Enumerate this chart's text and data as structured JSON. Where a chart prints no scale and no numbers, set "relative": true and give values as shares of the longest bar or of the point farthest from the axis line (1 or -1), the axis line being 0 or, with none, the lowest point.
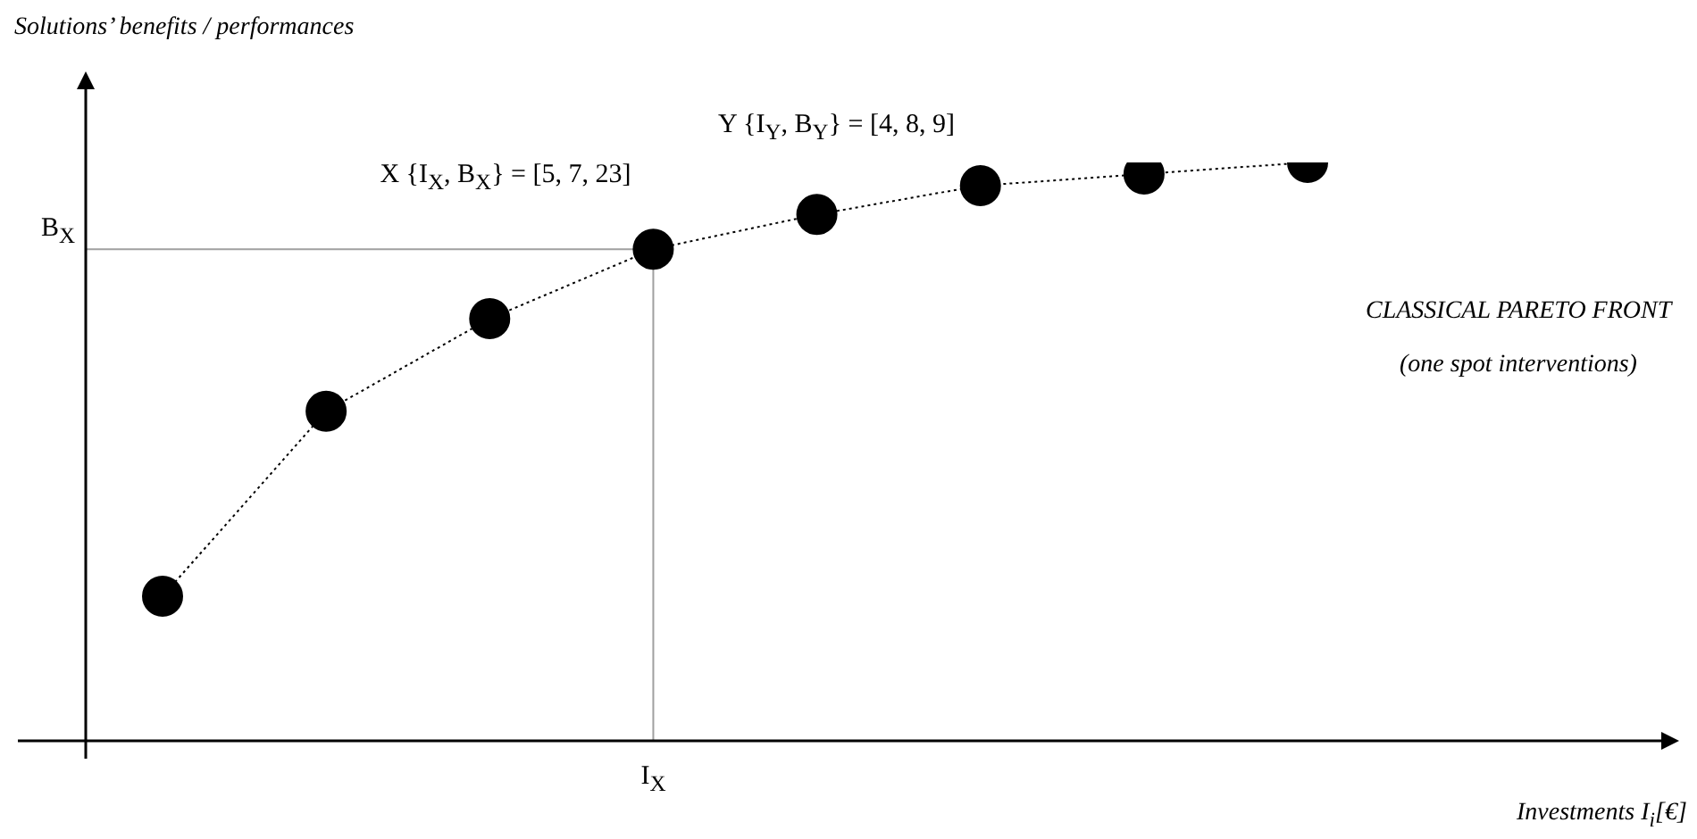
{
  "chart_data": {
    "type": "line",
    "relative": true,
    "ylabel": "Solutions’ benefits / performances",
    "categories": [
      null,
      null,
      null,
      null,
      null,
      null,
      null,
      null
    ],
    "series": [
      {
        "color": "#000000",
        "values": [
          0.25,
          0.57,
          0.73,
          0.85,
          0.91,
          0.96,
          0.98,
          1
        ]
      }
    ],
    "marker": "circle",
    "line_style": "dotted",
    "annotations": [
      "X {I$_{X}$, B$_{X}$} = [5, 7,  23]",
      "B$_{X}$",
      "I$_{X}$",
      "Y {I$_{Y}$, B$_{Y}$} = [4, 8, 9]",
      "CLASSICAL PARETO FRONT",
      "(one spot interventions)",
      "Investments I$_{i}$[€]"
    ]
  }
}
